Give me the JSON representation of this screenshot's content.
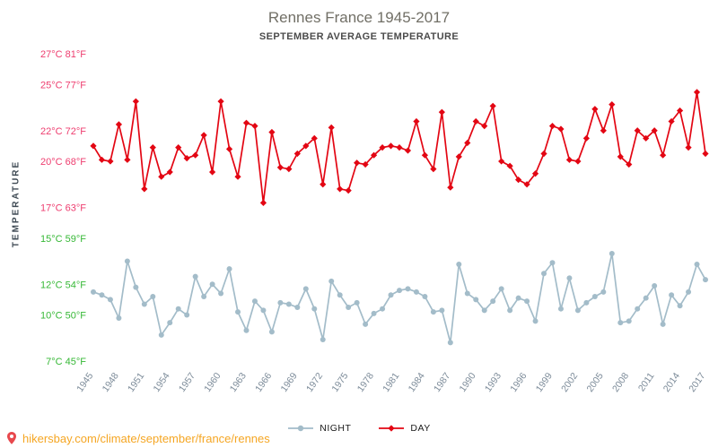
{
  "colors": {
    "day": "#e30613",
    "night": "#a3bcc9",
    "tick_warm": "#ee3d6f",
    "tick_cool": "#36b836",
    "axis_text": "#7c8b99",
    "title": "#716f66",
    "subtitle": "#4b4b4b",
    "ylabel": "#3f4a54",
    "legend_text": "#1a1a1a",
    "footer_url": "#f5a623",
    "pin": "#e8484d"
  },
  "footer": {
    "url": "hikersbay.com/climate/september/france/rennes"
  },
  "chart_data": {
    "type": "line",
    "title": "Rennes France 1945-2017",
    "subtitle": "SEPTEMBER AVERAGE TEMPERATURE",
    "ylabel": "TEMPERATURE",
    "xlabel": "",
    "grid": false,
    "legend_position": "bottom",
    "ylim": [
      7,
      27
    ],
    "y_ticks": [
      {
        "label": "27°C 81°F",
        "value": 27,
        "tone": "warm"
      },
      {
        "label": "25°C 77°F",
        "value": 25,
        "tone": "warm"
      },
      {
        "label": "22°C 72°F",
        "value": 22,
        "tone": "warm"
      },
      {
        "label": "20°C 68°F",
        "value": 20,
        "tone": "warm"
      },
      {
        "label": "17°C 63°F",
        "value": 17,
        "tone": "warm"
      },
      {
        "label": "15°C 59°F",
        "value": 15,
        "tone": "cool"
      },
      {
        "label": "12°C 54°F",
        "value": 12,
        "tone": "cool"
      },
      {
        "label": "10°C 50°F",
        "value": 10,
        "tone": "cool"
      },
      {
        "label": "7°C 45°F",
        "value": 7,
        "tone": "cool"
      }
    ],
    "x_ticks": [
      1945,
      1948,
      1951,
      1954,
      1957,
      1960,
      1963,
      1966,
      1969,
      1972,
      1975,
      1978,
      1981,
      1984,
      1987,
      1990,
      1993,
      1996,
      1999,
      2002,
      2005,
      2008,
      2011,
      2014,
      2017
    ],
    "years": [
      1945,
      1946,
      1947,
      1948,
      1949,
      1950,
      1951,
      1952,
      1953,
      1954,
      1955,
      1956,
      1957,
      1958,
      1959,
      1960,
      1961,
      1962,
      1963,
      1964,
      1965,
      1966,
      1967,
      1968,
      1969,
      1970,
      1971,
      1972,
      1973,
      1974,
      1975,
      1976,
      1977,
      1978,
      1979,
      1980,
      1981,
      1982,
      1983,
      1984,
      1985,
      1986,
      1987,
      1988,
      1989,
      1990,
      1991,
      1992,
      1993,
      1994,
      1995,
      1996,
      1997,
      1998,
      1999,
      2000,
      2001,
      2002,
      2003,
      2004,
      2005,
      2006,
      2007,
      2008,
      2009,
      2010,
      2011,
      2012,
      2013,
      2014,
      2015,
      2016,
      2017
    ],
    "series": [
      {
        "name": "NIGHT",
        "marker": "circle",
        "color": "#a3bcc9",
        "values": [
          11.5,
          11.3,
          11.0,
          9.8,
          13.5,
          11.8,
          10.7,
          11.2,
          8.7,
          9.5,
          10.4,
          10.0,
          12.5,
          11.2,
          12.0,
          11.4,
          13.0,
          10.2,
          9.0,
          10.9,
          10.3,
          8.9,
          10.8,
          10.7,
          10.5,
          11.7,
          10.4,
          8.4,
          12.2,
          11.3,
          10.5,
          10.8,
          9.4,
          10.1,
          10.4,
          11.3,
          11.6,
          11.7,
          11.5,
          11.2,
          10.2,
          10.3,
          8.2,
          13.3,
          11.4,
          11.0,
          10.3,
          10.9,
          11.7,
          10.3,
          11.1,
          10.9,
          9.6,
          12.7,
          13.4,
          10.4,
          12.4,
          10.3,
          10.8,
          11.2,
          11.5,
          14.0,
          9.5,
          9.6,
          10.4,
          11.1,
          11.9,
          9.4,
          11.3,
          10.6,
          11.5,
          13.3,
          12.3
        ]
      },
      {
        "name": "DAY",
        "marker": "diamond",
        "color": "#e30613",
        "values": [
          21.0,
          20.1,
          20.0,
          22.4,
          20.1,
          23.9,
          18.2,
          20.9,
          19.0,
          19.3,
          20.9,
          20.2,
          20.4,
          21.7,
          19.3,
          23.9,
          20.8,
          19.0,
          22.5,
          22.3,
          17.3,
          21.9,
          19.6,
          19.5,
          20.5,
          21.0,
          21.5,
          18.5,
          22.2,
          18.2,
          18.1,
          19.9,
          19.8,
          20.4,
          20.9,
          21.0,
          20.9,
          20.7,
          22.6,
          20.4,
          19.5,
          23.2,
          18.3,
          20.3,
          21.2,
          22.6,
          22.3,
          23.6,
          20.0,
          19.7,
          18.8,
          18.5,
          19.2,
          20.5,
          22.3,
          22.1,
          20.1,
          20.0,
          21.5,
          23.4,
          22.0,
          23.7,
          20.3,
          19.8,
          22.0,
          21.5,
          22.0,
          20.4,
          22.6,
          23.3,
          20.9,
          24.5,
          20.5
        ]
      }
    ]
  }
}
